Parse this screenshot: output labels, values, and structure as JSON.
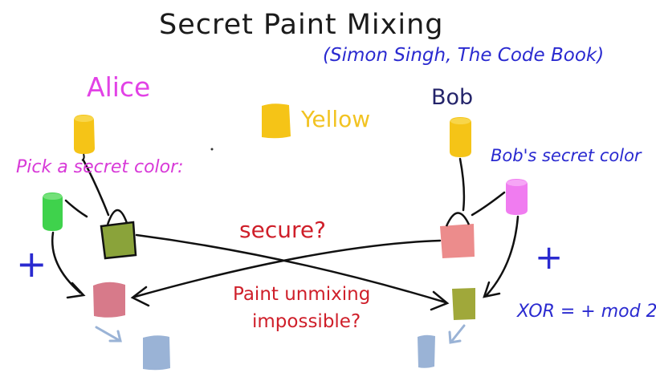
{
  "title": "Secret Paint Mixing",
  "citation": "(Simon Singh, The Code Book)",
  "alice_label": "Alice",
  "bob_label": "Bob",
  "shared_color_label": "Yellow",
  "alice_instruction": "Pick a secret color:",
  "bob_instruction": "Bob's secret color",
  "secure_question": "secure?",
  "unmixing_line1": "Paint unmixing",
  "unmixing_line2": "impossible?",
  "xor_note": "XOR = + mod 2",
  "plus_left": "+",
  "plus_right": "+",
  "colors": {
    "yellow": "#f5c417",
    "alice_secret": "#3fd24c",
    "bob_secret": "#f07cf0",
    "alice_mix": "#8aa33a",
    "bob_mix": "#ec8c8c",
    "final_alice": "#d77a8a",
    "final_bob": "#a0a83a",
    "result": "#9ab3d6",
    "ink": "#111111",
    "blue_ink": "#2a2ad0"
  }
}
